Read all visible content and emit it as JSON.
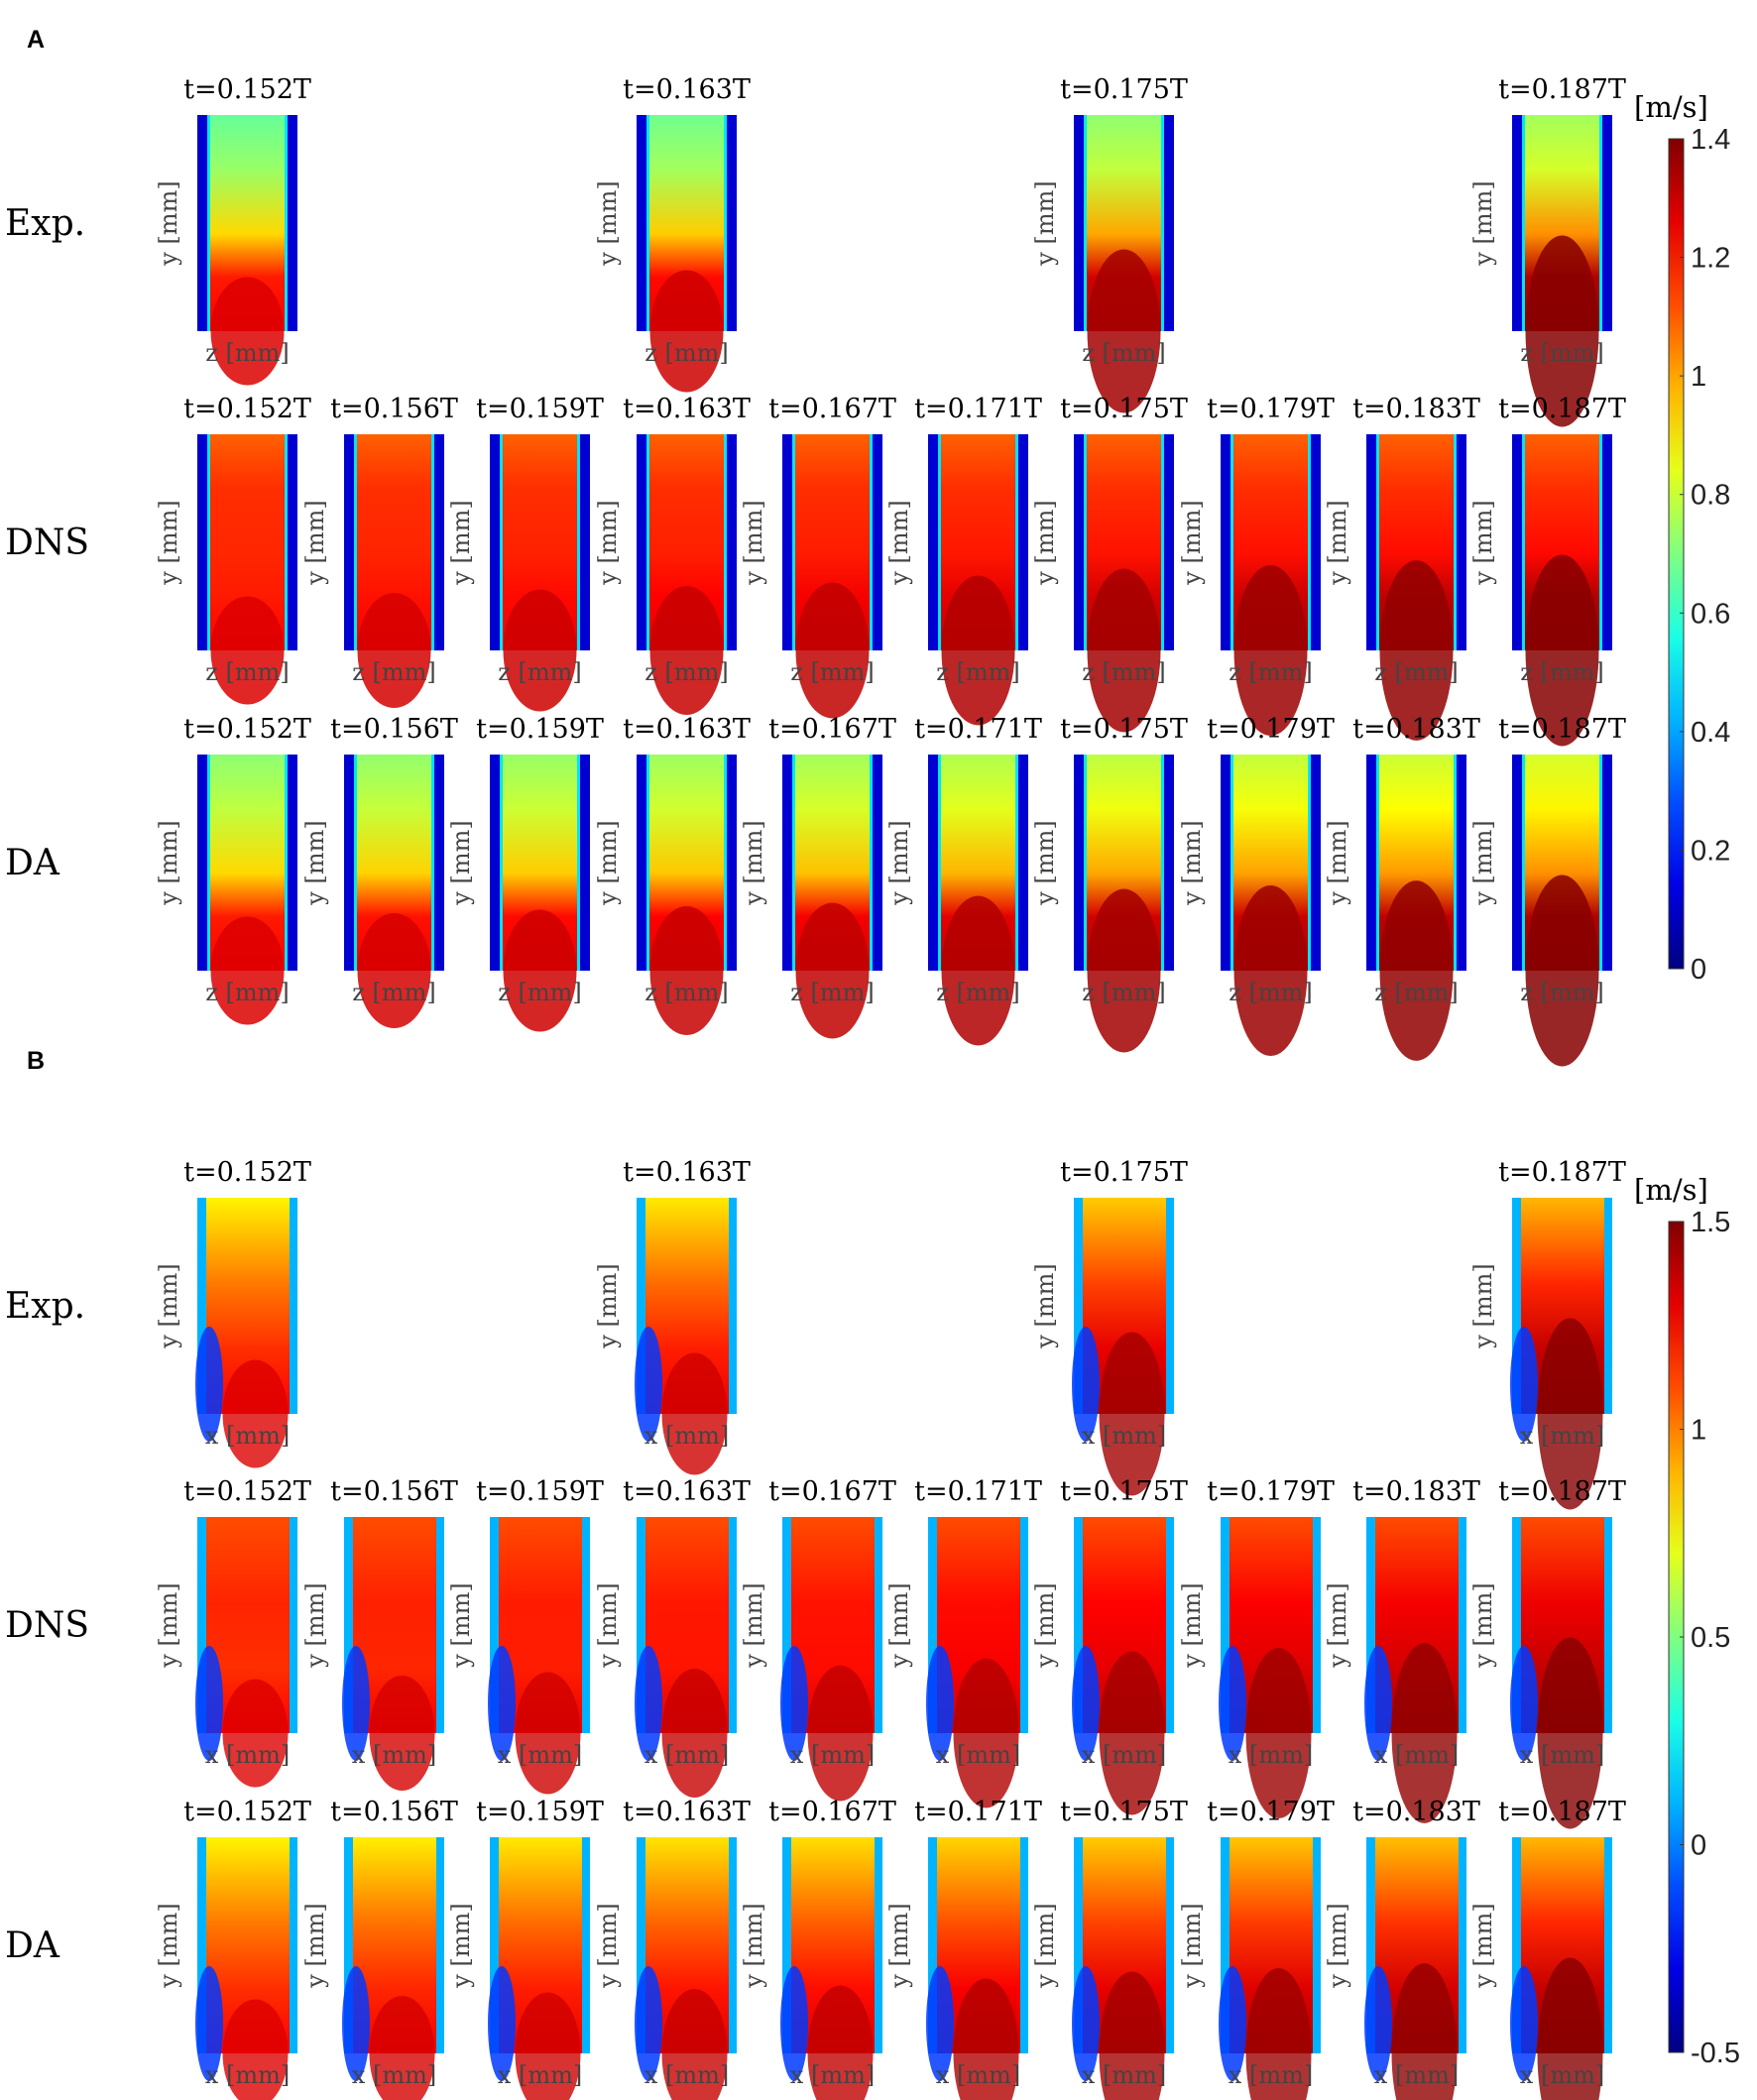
{
  "chart_data": [
    {
      "type": "heatmap",
      "panel": "A",
      "colorbar": {
        "unit": "[m/s]",
        "min": 0,
        "max": 1.4,
        "ticks": [
          "1.4",
          "1.2",
          "1",
          "0.8",
          "0.6",
          "0.4",
          "0.2",
          "0"
        ]
      },
      "rows": [
        {
          "name": "Exp.",
          "xlabel": "z [mm]",
          "ylabel": "y [mm]",
          "times": [
            "t=0.152T",
            "t=0.163T",
            "t=0.175T",
            "t=0.187T"
          ],
          "slots": [
            0,
            3,
            6,
            9
          ],
          "peak": [
            0.35,
            0.45,
            0.75,
            0.95
          ],
          "kind": "exp"
        },
        {
          "name": "DNS",
          "xlabel": "z [mm]",
          "ylabel": "y [mm]",
          "times": [
            "t=0.152T",
            "t=0.156T",
            "t=0.159T",
            "t=0.163T",
            "t=0.167T",
            "t=0.171T",
            "t=0.175T",
            "t=0.179T",
            "t=0.183T",
            "t=0.187T"
          ],
          "slots": [
            0,
            1,
            2,
            3,
            4,
            5,
            6,
            7,
            8,
            9
          ],
          "peak": [
            0.35,
            0.4,
            0.45,
            0.5,
            0.55,
            0.65,
            0.75,
            0.8,
            0.87,
            0.95
          ],
          "kind": "dns"
        },
        {
          "name": "DA",
          "xlabel": "z [mm]",
          "ylabel": "y [mm]",
          "times": [
            "t=0.152T",
            "t=0.156T",
            "t=0.159T",
            "t=0.163T",
            "t=0.167T",
            "t=0.171T",
            "t=0.175T",
            "t=0.179T",
            "t=0.183T",
            "t=0.187T"
          ],
          "slots": [
            0,
            1,
            2,
            3,
            4,
            5,
            6,
            7,
            8,
            9
          ],
          "peak": [
            0.35,
            0.4,
            0.45,
            0.5,
            0.55,
            0.65,
            0.75,
            0.8,
            0.87,
            0.95
          ],
          "kind": "da"
        }
      ]
    },
    {
      "type": "heatmap",
      "panel": "B",
      "colorbar": {
        "unit": "[m/s]",
        "min": -0.5,
        "max": 1.5,
        "ticks": [
          "1.5",
          "1",
          "0.5",
          "0",
          "-0.5"
        ]
      },
      "rows": [
        {
          "name": "Exp.",
          "xlabel": "x [mm]",
          "ylabel": "y [mm]",
          "times": [
            "t=0.152T",
            "t=0.163T",
            "t=0.175T",
            "t=0.187T"
          ],
          "slots": [
            0,
            3,
            6,
            9
          ],
          "peak": [
            0.35,
            0.45,
            0.75,
            0.95
          ],
          "kind": "exp"
        },
        {
          "name": "DNS",
          "xlabel": "x [mm]",
          "ylabel": "y [mm]",
          "times": [
            "t=0.152T",
            "t=0.156T",
            "t=0.159T",
            "t=0.163T",
            "t=0.167T",
            "t=0.171T",
            "t=0.175T",
            "t=0.179T",
            "t=0.183T",
            "t=0.187T"
          ],
          "slots": [
            0,
            1,
            2,
            3,
            4,
            5,
            6,
            7,
            8,
            9
          ],
          "peak": [
            0.35,
            0.4,
            0.45,
            0.5,
            0.55,
            0.65,
            0.75,
            0.8,
            0.87,
            0.95
          ],
          "kind": "dns"
        },
        {
          "name": "DA",
          "xlabel": "x [mm]",
          "ylabel": "y [mm]",
          "times": [
            "t=0.152T",
            "t=0.156T",
            "t=0.159T",
            "t=0.163T",
            "t=0.167T",
            "t=0.171T",
            "t=0.175T",
            "t=0.179T",
            "t=0.183T",
            "t=0.187T"
          ],
          "slots": [
            0,
            1,
            2,
            3,
            4,
            5,
            6,
            7,
            8,
            9
          ],
          "peak": [
            0.35,
            0.4,
            0.45,
            0.5,
            0.55,
            0.65,
            0.75,
            0.8,
            0.87,
            0.95
          ],
          "kind": "da"
        }
      ]
    }
  ]
}
